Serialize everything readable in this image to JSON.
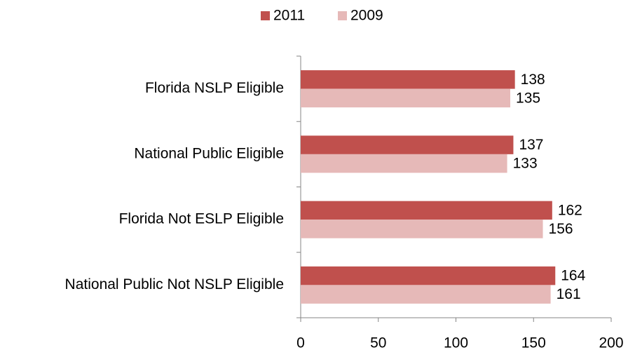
{
  "chart_data": {
    "type": "bar",
    "orientation": "horizontal",
    "categories": [
      "Florida NSLP Eligible",
      "National Public Eligible",
      "Florida Not ESLP Eligible",
      "National Public Not NSLP Eligible"
    ],
    "series": [
      {
        "name": "2011",
        "color": "#c0504d",
        "values": [
          138,
          137,
          162,
          164
        ]
      },
      {
        "name": "2009",
        "color": "#e6b9b8",
        "values": [
          135,
          133,
          156,
          161
        ]
      }
    ],
    "xlim": [
      0,
      200
    ],
    "xticks": [
      0,
      50,
      100,
      150,
      200
    ],
    "grid": false,
    "legend": "top"
  }
}
